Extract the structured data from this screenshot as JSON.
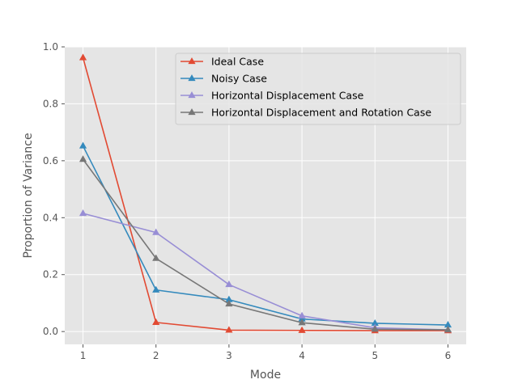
{
  "chart_data": {
    "type": "line",
    "title": "",
    "xlabel": "Mode",
    "ylabel": "Proportion of Variance",
    "x": [
      1,
      2,
      3,
      4,
      5,
      6
    ],
    "xlim": [
      0.75,
      6.25
    ],
    "ylim": [
      -0.045,
      1.0
    ],
    "x_ticks": [
      "1",
      "2",
      "3",
      "4",
      "5",
      "6"
    ],
    "y_ticks": [
      "0.0",
      "0.2",
      "0.4",
      "0.6",
      "0.8",
      "1.0"
    ],
    "grid": true,
    "legend_position": "upper-right",
    "marker": "triangle",
    "series": [
      {
        "name": "Ideal Case",
        "color": "#E24A33",
        "values": [
          0.962,
          0.032,
          0.005,
          0.004,
          0.003,
          0.003
        ]
      },
      {
        "name": "Noisy Case",
        "color": "#348ABD",
        "values": [
          0.652,
          0.146,
          0.112,
          0.044,
          0.029,
          0.023
        ]
      },
      {
        "name": "Horizontal Displacement Case",
        "color": "#988ED5",
        "values": [
          0.415,
          0.348,
          0.165,
          0.055,
          0.013,
          0.006
        ]
      },
      {
        "name": "Horizontal Displacement and Rotation Case",
        "color": "#777777",
        "values": [
          0.605,
          0.257,
          0.097,
          0.031,
          0.008,
          0.006
        ]
      }
    ]
  }
}
